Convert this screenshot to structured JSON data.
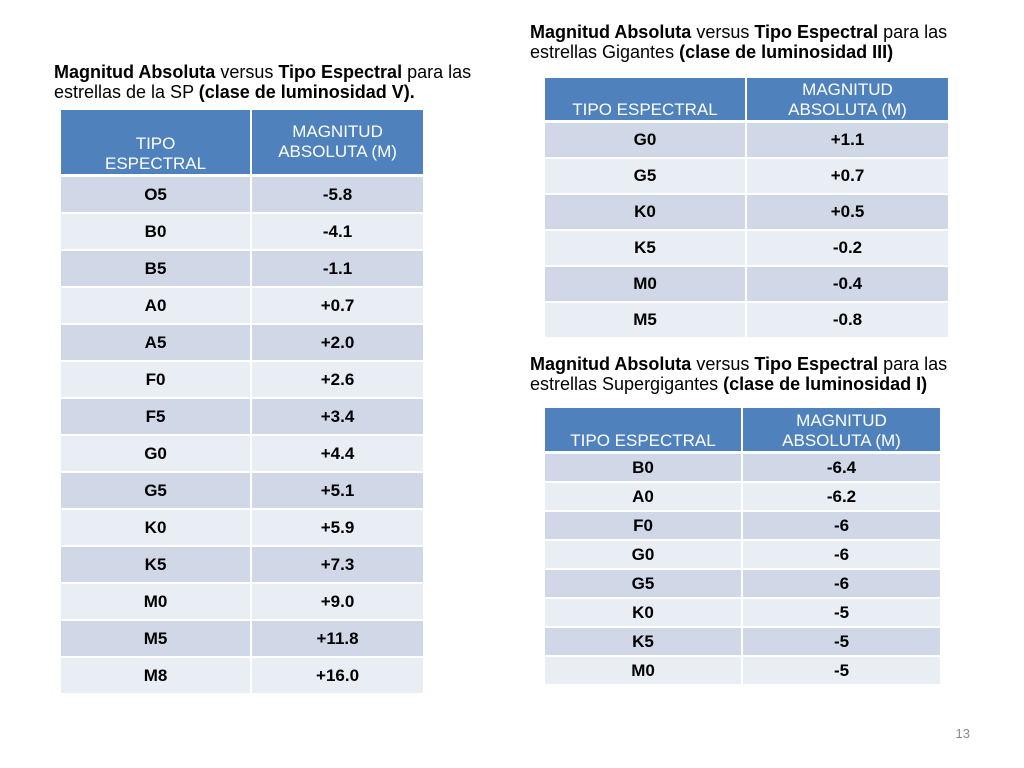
{
  "main_sequence": {
    "caption": {
      "bold1": "Magnitud Absoluta",
      "mid1": " versus ",
      "bold2": "Tipo Espectral",
      "mid2": " para las estrellas de la SP  ",
      "bold3": "(clase de luminosidad V)."
    },
    "headers": [
      "TIPO ESPECTRAL",
      "MAGNITUD ABSOLUTA (M)"
    ],
    "rows": [
      [
        "O5",
        "-5.8"
      ],
      [
        "B0",
        "-4.1"
      ],
      [
        "B5",
        "-1.1"
      ],
      [
        "A0",
        "+0.7"
      ],
      [
        "A5",
        "+2.0"
      ],
      [
        "F0",
        "+2.6"
      ],
      [
        "F5",
        "+3.4"
      ],
      [
        "G0",
        "+4.4"
      ],
      [
        "G5",
        "+5.1"
      ],
      [
        "K0",
        "+5.9"
      ],
      [
        "K5",
        "+7.3"
      ],
      [
        "M0",
        "+9.0"
      ],
      [
        "M5",
        "+11.8"
      ],
      [
        "M8",
        "+16.0"
      ]
    ]
  },
  "giants": {
    "caption": {
      "bold1": "Magnitud Absoluta",
      "mid1": " versus ",
      "bold2": "Tipo Espectral",
      "mid2": " para las estrellas Gigantes  ",
      "bold3": "(clase de luminosidad III)"
    },
    "headers": [
      "TIPO ESPECTRAL",
      "MAGNITUD ABSOLUTA (M)"
    ],
    "rows": [
      [
        "G0",
        "+1.1"
      ],
      [
        "G5",
        "+0.7"
      ],
      [
        "K0",
        "+0.5"
      ],
      [
        "K5",
        "-0.2"
      ],
      [
        "M0",
        "-0.4"
      ],
      [
        "M5",
        "-0.8"
      ]
    ]
  },
  "supergiants": {
    "caption": {
      "bold1": "Magnitud Absoluta",
      "mid1": " versus ",
      "bold2": "Tipo Espectral",
      "mid2": " para las estrellas Supergigantes  ",
      "bold3": "(clase de luminosidad I)"
    },
    "headers": [
      "TIPO ESPECTRAL",
      "MAGNITUD ABSOLUTA (M)"
    ],
    "rows": [
      [
        "B0",
        "-6.4"
      ],
      [
        "A0",
        "-6.2"
      ],
      [
        "F0",
        "-6"
      ],
      [
        "G0",
        "-6"
      ],
      [
        "G5",
        "-6"
      ],
      [
        "K0",
        "-5"
      ],
      [
        "K5",
        "-5"
      ],
      [
        "M0",
        "-5"
      ]
    ]
  },
  "slide_number": "13"
}
